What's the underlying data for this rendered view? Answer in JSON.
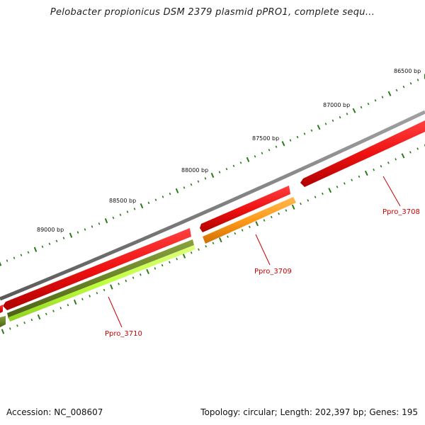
{
  "title": "Pelobacter propionicus DSM 2379 plasmid pPRO1, complete sequ...",
  "footer": {
    "accession": "Accession: NC_008607",
    "summary": "Topology: circular; Length: 202,397 bp; Genes: 195"
  },
  "map": {
    "backbone_color": "#808080",
    "tick_color": "#2a7a1a",
    "ticks": [
      {
        "bp": 86500,
        "label": "86500 bp"
      },
      {
        "bp": 87000,
        "label": "87000 bp"
      },
      {
        "bp": 87500,
        "label": "87500 bp"
      },
      {
        "bp": 88000,
        "label": "88000 bp"
      },
      {
        "bp": 88500,
        "label": "88500 bp"
      },
      {
        "bp": 89000,
        "label": "89000 bp"
      }
    ],
    "genes": [
      {
        "name": "Ppro_3708",
        "color": "#ee1111",
        "dark": "#c40000"
      },
      {
        "name": "Ppro_3709",
        "color": "#ff9a1a",
        "dark": "#d07000"
      },
      {
        "name": "Ppro_3710",
        "color": "#c0ff3e",
        "dark": "#5a7a1e"
      }
    ]
  }
}
